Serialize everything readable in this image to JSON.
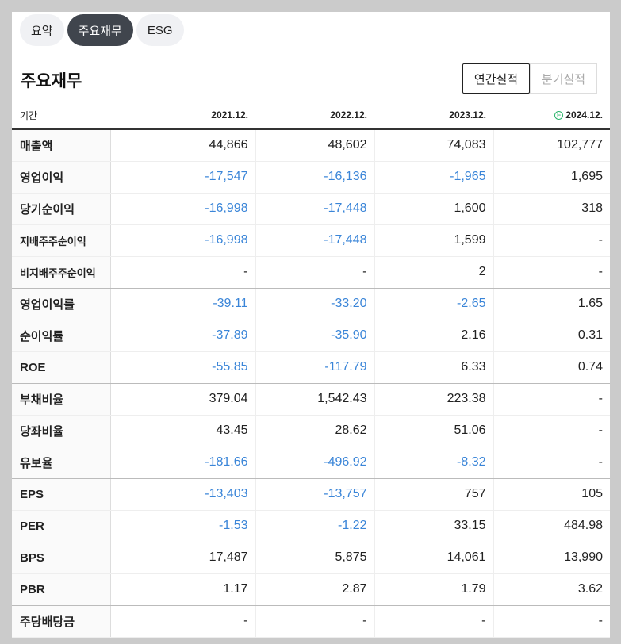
{
  "tabs": [
    {
      "label": "요약",
      "active": false
    },
    {
      "label": "주요재무",
      "active": true
    },
    {
      "label": "ESG",
      "active": false
    }
  ],
  "section_title": "주요재무",
  "period_toggle": {
    "annual": "연간실적",
    "quarterly": "분기실적",
    "selected": "annual"
  },
  "table": {
    "period_label": "기간",
    "columns": [
      "2021.12.",
      "2022.12.",
      "2023.12.",
      "2024.12."
    ],
    "estimate_badge": "E",
    "rows": [
      {
        "label": "매출액",
        "values": [
          "44,866",
          "48,602",
          "74,083",
          "102,777"
        ]
      },
      {
        "label": "영업이익",
        "values": [
          "-17,547",
          "-16,136",
          "-1,965",
          "1,695"
        ]
      },
      {
        "label": "당기순이익",
        "values": [
          "-16,998",
          "-17,448",
          "1,600",
          "318"
        ]
      },
      {
        "label": "지배주주순이익",
        "values": [
          "-16,998",
          "-17,448",
          "1,599",
          "-"
        ]
      },
      {
        "label": "비지배주주순이익",
        "values": [
          "-",
          "-",
          "2",
          "-"
        ]
      },
      {
        "label": "영업이익률",
        "values": [
          "-39.11",
          "-33.20",
          "-2.65",
          "1.65"
        ]
      },
      {
        "label": "순이익률",
        "values": [
          "-37.89",
          "-35.90",
          "2.16",
          "0.31"
        ]
      },
      {
        "label": "ROE",
        "values": [
          "-55.85",
          "-117.79",
          "6.33",
          "0.74"
        ]
      },
      {
        "label": "부채비율",
        "values": [
          "379.04",
          "1,542.43",
          "223.38",
          "-"
        ]
      },
      {
        "label": "당좌비율",
        "values": [
          "43.45",
          "28.62",
          "51.06",
          "-"
        ]
      },
      {
        "label": "유보율",
        "values": [
          "-181.66",
          "-496.92",
          "-8.32",
          "-"
        ]
      },
      {
        "label": "EPS",
        "values": [
          "-13,403",
          "-13,757",
          "757",
          "105"
        ]
      },
      {
        "label": "PER",
        "values": [
          "-1.53",
          "-1.22",
          "33.15",
          "484.98"
        ]
      },
      {
        "label": "BPS",
        "values": [
          "17,487",
          "5,875",
          "14,061",
          "13,990"
        ]
      },
      {
        "label": "PBR",
        "values": [
          "1.17",
          "2.87",
          "1.79",
          "3.62"
        ]
      },
      {
        "label": "주당배당금",
        "values": [
          "-",
          "-",
          "-",
          "-"
        ]
      }
    ]
  },
  "colors": {
    "negative": "#3a85d8",
    "estimate": "#2bb56b",
    "active_tab": "#40454d"
  }
}
